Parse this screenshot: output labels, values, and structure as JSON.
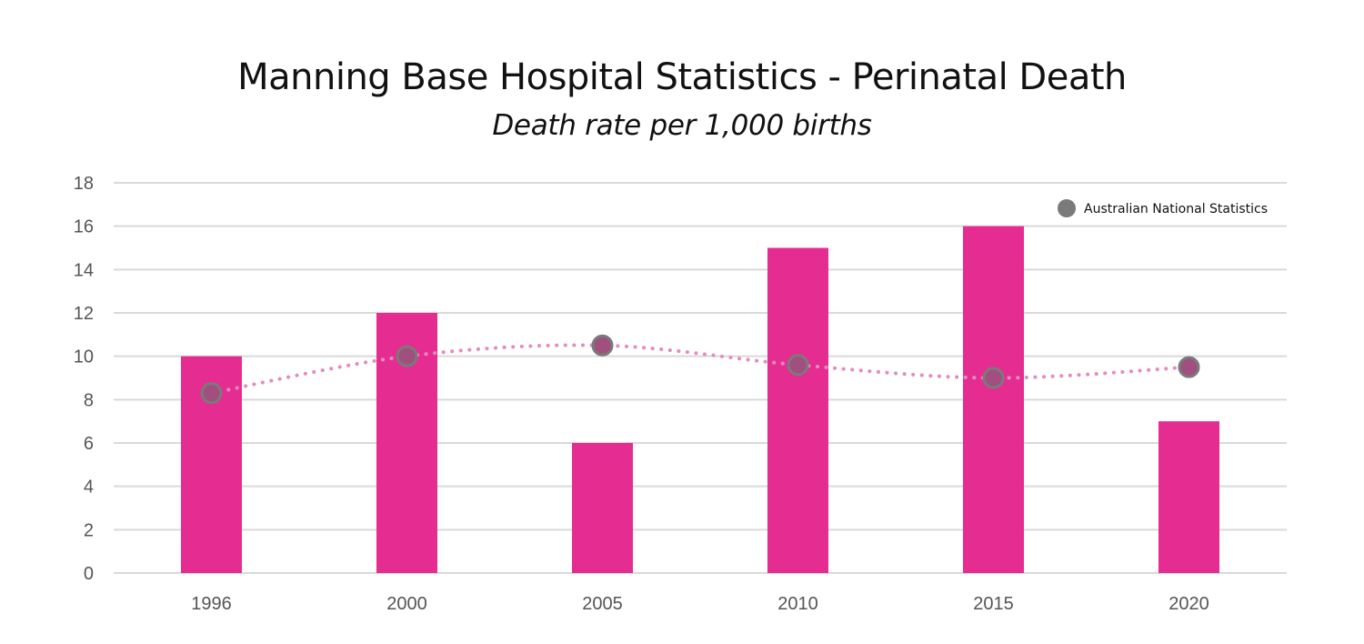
{
  "chart_data": {
    "type": "bar",
    "title": "Manning Base Hospital Statistics - Perinatal Death",
    "subtitle": "Death rate per 1,000 births",
    "categories": [
      "1996",
      "2000",
      "2005",
      "2010",
      "2015",
      "2020"
    ],
    "series": [
      {
        "type": "bar",
        "values": [
          10,
          12,
          6,
          15,
          16,
          7
        ],
        "color": "#e52d91"
      },
      {
        "type": "line",
        "name": "Australian National Statistics",
        "values": [
          8.3,
          10,
          10.5,
          9.6,
          9.0,
          9.5
        ],
        "color": "#e68bbf",
        "marker_color": "#7a7a7a",
        "line_style": "dotted"
      }
    ],
    "ylim": [
      0,
      18
    ],
    "yticks": [
      0,
      2,
      4,
      6,
      8,
      10,
      12,
      14,
      16,
      18
    ],
    "grid": true,
    "legend_placement": "top-right"
  }
}
